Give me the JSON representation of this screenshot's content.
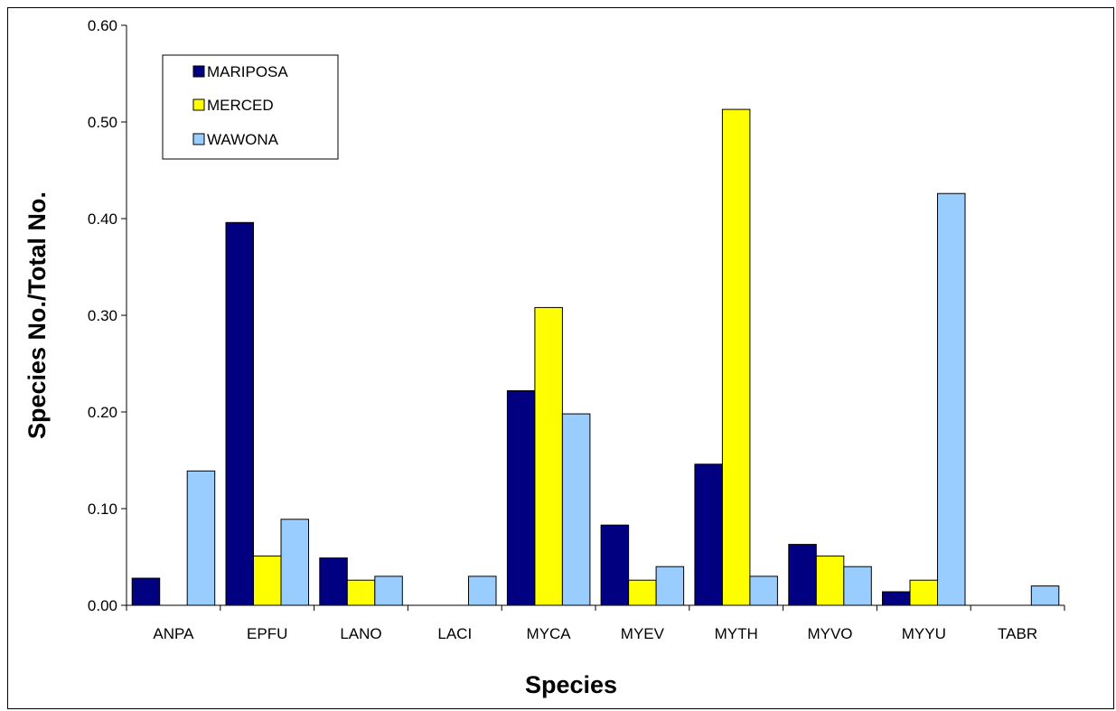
{
  "chart_data": {
    "type": "bar",
    "title": "",
    "xlabel": "Species",
    "ylabel": "Species No./Total No.",
    "categories": [
      "ANPA",
      "EPFU",
      "LANO",
      "LACI",
      "MYCA",
      "MYEV",
      "MYTH",
      "MYVO",
      "MYYU",
      "TABR"
    ],
    "series": [
      {
        "name": "MARIPOSA",
        "color": "#000080",
        "values": [
          0.028,
          0.396,
          0.049,
          null,
          0.222,
          0.083,
          0.146,
          0.063,
          0.014,
          null
        ]
      },
      {
        "name": "MERCED",
        "color": "#ffff00",
        "values": [
          null,
          0.051,
          0.026,
          null,
          0.308,
          0.026,
          0.513,
          0.051,
          0.026,
          null
        ]
      },
      {
        "name": "WAWONA",
        "color": "#99ccff",
        "values": [
          0.139,
          0.089,
          0.03,
          0.03,
          0.198,
          0.04,
          0.03,
          0.04,
          0.426,
          0.02
        ]
      }
    ],
    "ylim": [
      0,
      0.6
    ],
    "yticks": [
      "0.00",
      "0.10",
      "0.20",
      "0.30",
      "0.40",
      "0.50",
      "0.60"
    ],
    "grid": false,
    "legend_position": "top-left"
  }
}
